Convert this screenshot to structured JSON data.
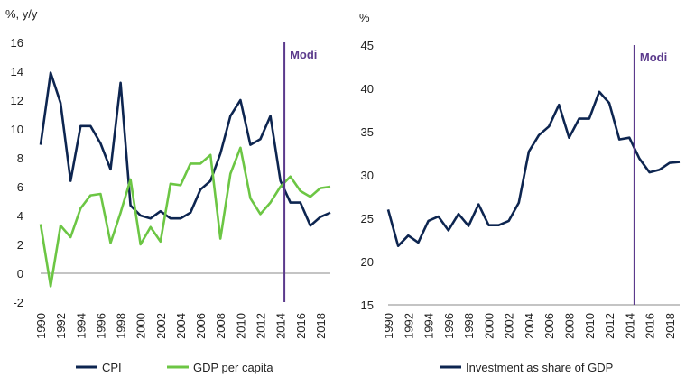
{
  "colors": {
    "cpi": "#0d2550",
    "gdp": "#6cc644",
    "modi": "#5b3a8c",
    "axis": "#888888"
  },
  "chart_data": [
    {
      "type": "line",
      "ylabel": "%, y/y",
      "ylim": [
        -2,
        16
      ],
      "yticks": [
        -2,
        0,
        2,
        4,
        6,
        8,
        10,
        12,
        14,
        16
      ],
      "xlim": [
        1990,
        2019
      ],
      "xticks": [
        1990,
        1992,
        1994,
        1996,
        1998,
        2000,
        2002,
        2004,
        2006,
        2008,
        2010,
        2012,
        2014,
        2016,
        2018
      ],
      "x": [
        1990,
        1991,
        1992,
        1993,
        1994,
        1995,
        1996,
        1997,
        1998,
        1999,
        2000,
        2001,
        2002,
        2003,
        2004,
        2005,
        2006,
        2007,
        2008,
        2009,
        2010,
        2011,
        2012,
        2013,
        2014,
        2015,
        2016,
        2017,
        2018,
        2019
      ],
      "series": [
        {
          "name": "CPI",
          "color_key": "cpi",
          "values": [
            8.9,
            13.9,
            11.8,
            6.4,
            10.2,
            10.2,
            9.0,
            7.2,
            13.2,
            4.7,
            4.0,
            3.8,
            4.3,
            3.8,
            3.8,
            4.2,
            5.8,
            6.4,
            8.3,
            10.9,
            12.0,
            8.9,
            9.3,
            10.9,
            6.4,
            4.9,
            4.9,
            3.3,
            3.9,
            4.2
          ]
        },
        {
          "name": "GDP per capita",
          "color_key": "gdp",
          "values": [
            3.4,
            -0.9,
            3.3,
            2.5,
            4.5,
            5.4,
            5.5,
            2.1,
            4.2,
            6.5,
            2.0,
            3.2,
            2.2,
            6.2,
            6.1,
            7.6,
            7.6,
            8.2,
            2.4,
            6.9,
            8.7,
            5.2,
            4.1,
            4.9,
            6.0,
            6.7,
            5.7,
            5.3,
            5.9,
            6.0
          ]
        }
      ],
      "annotation": {
        "label": "Modi",
        "x": 2014.4
      },
      "legend": "bottom"
    },
    {
      "type": "line",
      "ylabel": "%",
      "ylim": [
        15,
        45
      ],
      "yticks": [
        15,
        20,
        25,
        30,
        35,
        40,
        45
      ],
      "xlim": [
        1990,
        2019
      ],
      "xticks": [
        1990,
        1992,
        1994,
        1996,
        1998,
        2000,
        2002,
        2004,
        2006,
        2008,
        2010,
        2012,
        2014,
        2016,
        2018
      ],
      "x": [
        1990,
        1991,
        1992,
        1993,
        1994,
        1995,
        1996,
        1997,
        1998,
        1999,
        2000,
        2001,
        2002,
        2003,
        2004,
        2005,
        2006,
        2007,
        2008,
        2009,
        2010,
        2011,
        2012,
        2013,
        2014,
        2015,
        2016,
        2017,
        2018,
        2019
      ],
      "series": [
        {
          "name": "Investment as share of GDP",
          "color_key": "cpi",
          "values": [
            26.0,
            21.8,
            23.0,
            22.2,
            24.7,
            25.2,
            23.6,
            25.5,
            24.1,
            26.6,
            24.2,
            24.2,
            24.7,
            26.8,
            32.7,
            34.6,
            35.6,
            38.1,
            34.3,
            36.5,
            36.5,
            39.6,
            38.3,
            34.1,
            34.3,
            31.9,
            30.3,
            30.6,
            31.4,
            31.5
          ]
        }
      ],
      "annotation": {
        "label": "Modi",
        "x": 2014.5
      },
      "legend": "bottom"
    }
  ]
}
